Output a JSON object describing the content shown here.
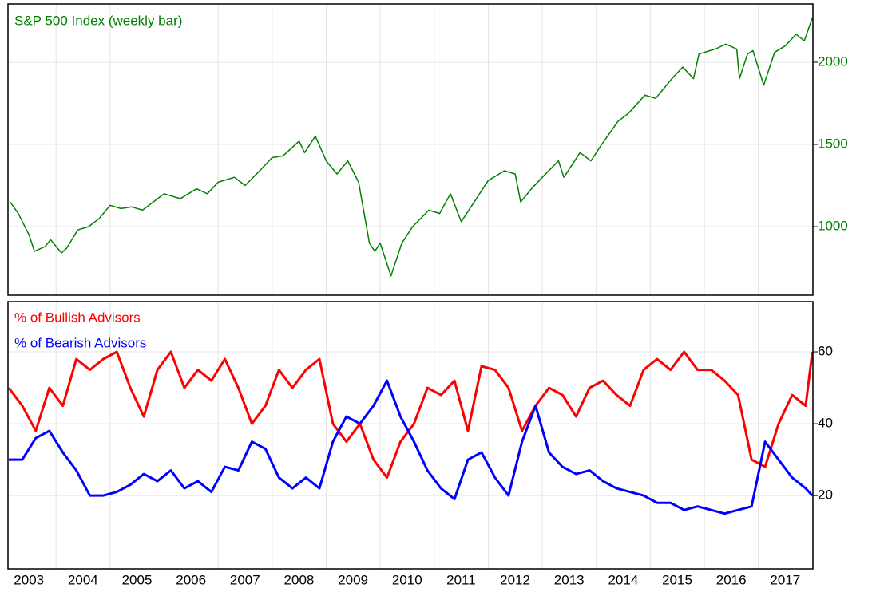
{
  "chart_data": [
    {
      "type": "line",
      "title": "S&P 500 Index (weekly bar)",
      "xlim": [
        2002.11,
        2017.01
      ],
      "ylim": [
        583,
        2354
      ],
      "yticks": [
        1000,
        1500,
        2000
      ],
      "grid": true,
      "series": [
        {
          "name": "S&P 500 Index (weekly bar)",
          "color": "#008000",
          "x": [
            2002.15,
            2002.3,
            2002.5,
            2002.6,
            2002.8,
            2002.9,
            2003.1,
            2003.2,
            2003.4,
            2003.6,
            2003.8,
            2004.0,
            2004.2,
            2004.4,
            2004.6,
            2004.8,
            2005.0,
            2005.3,
            2005.6,
            2005.8,
            2006.0,
            2006.3,
            2006.5,
            2006.8,
            2007.0,
            2007.2,
            2007.5,
            2007.6,
            2007.8,
            2008.0,
            2008.2,
            2008.4,
            2008.6,
            2008.8,
            2008.9,
            2009.0,
            2009.2,
            2009.4,
            2009.6,
            2009.9,
            2010.1,
            2010.3,
            2010.5,
            2010.7,
            2011.0,
            2011.3,
            2011.5,
            2011.6,
            2011.8,
            2012.0,
            2012.3,
            2012.4,
            2012.7,
            2012.9,
            2013.1,
            2013.4,
            2013.6,
            2013.9,
            2014.1,
            2014.4,
            2014.6,
            2014.8,
            2014.9,
            2015.2,
            2015.4,
            2015.6,
            2015.65,
            2015.8,
            2015.9,
            2016.1,
            2016.3,
            2016.5,
            2016.7,
            2016.85,
            2017.0
          ],
          "values": [
            1150,
            1080,
            950,
            850,
            880,
            920,
            840,
            870,
            980,
            1000,
            1050,
            1130,
            1110,
            1120,
            1100,
            1150,
            1200,
            1170,
            1230,
            1200,
            1270,
            1300,
            1250,
            1350,
            1420,
            1430,
            1520,
            1450,
            1550,
            1400,
            1320,
            1400,
            1270,
            900,
            850,
            900,
            700,
            900,
            1000,
            1100,
            1080,
            1200,
            1030,
            1130,
            1280,
            1340,
            1320,
            1150,
            1230,
            1300,
            1400,
            1300,
            1450,
            1400,
            1500,
            1640,
            1690,
            1800,
            1780,
            1900,
            1970,
            1900,
            2050,
            2080,
            2110,
            2080,
            1900,
            2050,
            2070,
            1860,
            2060,
            2100,
            2170,
            2130,
            2270
          ]
        }
      ]
    },
    {
      "type": "line",
      "xlim": [
        2002.11,
        2017.01
      ],
      "xticks": [
        2003,
        2004,
        2005,
        2006,
        2007,
        2008,
        2009,
        2010,
        2011,
        2012,
        2013,
        2014,
        2015,
        2016,
        2017
      ],
      "ylim": [
        -0.4,
        74
      ],
      "yticks": [
        20,
        40,
        60
      ],
      "grid": true,
      "series": [
        {
          "name": "% of Bullish Advisors",
          "color": "#ff0000",
          "x": [
            2002.125,
            2002.375,
            2002.625,
            2002.875,
            2003.125,
            2003.375,
            2003.625,
            2003.875,
            2004.125,
            2004.375,
            2004.625,
            2004.875,
            2005.125,
            2005.375,
            2005.625,
            2005.875,
            2006.125,
            2006.375,
            2006.625,
            2006.875,
            2007.125,
            2007.375,
            2007.625,
            2007.875,
            2008.125,
            2008.375,
            2008.625,
            2008.875,
            2009.125,
            2009.375,
            2009.625,
            2009.875,
            2010.125,
            2010.375,
            2010.625,
            2010.875,
            2011.125,
            2011.375,
            2011.625,
            2011.875,
            2012.125,
            2012.375,
            2012.625,
            2012.875,
            2013.125,
            2013.375,
            2013.625,
            2013.875,
            2014.125,
            2014.375,
            2014.625,
            2014.875,
            2015.125,
            2015.375,
            2015.625,
            2015.875,
            2016.125,
            2016.375,
            2016.625,
            2016.875,
            2017.0
          ],
          "values": [
            50,
            45,
            38,
            50,
            45,
            58,
            55,
            58,
            60,
            50,
            42,
            55,
            60,
            50,
            55,
            52,
            58,
            50,
            40,
            45,
            55,
            50,
            55,
            58,
            40,
            35,
            40,
            30,
            25,
            35,
            40,
            50,
            48,
            52,
            38,
            56,
            55,
            50,
            38,
            45,
            50,
            48,
            42,
            50,
            52,
            48,
            45,
            55,
            58,
            55,
            60,
            55,
            55,
            52,
            48,
            30,
            28,
            40,
            48,
            45,
            60
          ]
        },
        {
          "name": "% of Bearish Advisors",
          "color": "#0000ff",
          "x": [
            2002.125,
            2002.375,
            2002.625,
            2002.875,
            2003.125,
            2003.375,
            2003.625,
            2003.875,
            2004.125,
            2004.375,
            2004.625,
            2004.875,
            2005.125,
            2005.375,
            2005.625,
            2005.875,
            2006.125,
            2006.375,
            2006.625,
            2006.875,
            2007.125,
            2007.375,
            2007.625,
            2007.875,
            2008.125,
            2008.375,
            2008.625,
            2008.875,
            2009.125,
            2009.375,
            2009.625,
            2009.875,
            2010.125,
            2010.375,
            2010.625,
            2010.875,
            2011.125,
            2011.375,
            2011.625,
            2011.875,
            2012.125,
            2012.375,
            2012.625,
            2012.875,
            2013.125,
            2013.375,
            2013.625,
            2013.875,
            2014.125,
            2014.375,
            2014.625,
            2014.875,
            2015.125,
            2015.375,
            2015.625,
            2015.875,
            2016.125,
            2016.375,
            2016.625,
            2016.875,
            2017.0
          ],
          "values": [
            30,
            30,
            36,
            38,
            32,
            27,
            20,
            20,
            21,
            23,
            26,
            24,
            27,
            22,
            24,
            21,
            28,
            27,
            35,
            33,
            25,
            22,
            25,
            22,
            35,
            42,
            40,
            45,
            52,
            42,
            35,
            27,
            22,
            19,
            30,
            32,
            25,
            20,
            35,
            45,
            32,
            28,
            26,
            27,
            24,
            22,
            21,
            20,
            18,
            18,
            16,
            17,
            16,
            15,
            16,
            17,
            35,
            30,
            25,
            22,
            20
          ]
        }
      ]
    }
  ]
}
